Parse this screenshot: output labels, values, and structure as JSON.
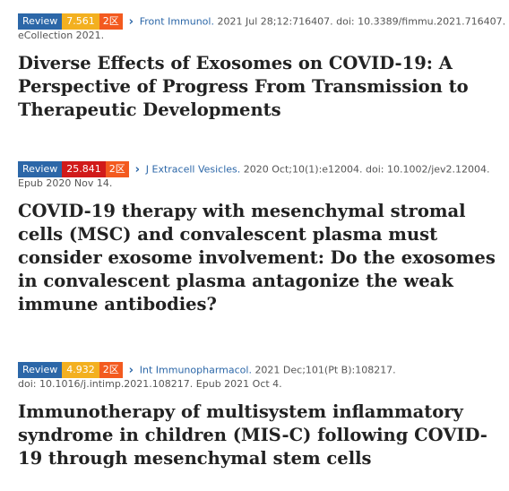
{
  "articles": [
    {
      "type_label": "Review",
      "impact_factor": "7.561",
      "zone": "2区",
      "journal": "Front Immunol.",
      "citation": "2021 Jul 28;12:716407. doi: 10.3389/fimmu.2021.716407.",
      "citation_cont": "eCollection 2021.",
      "title": "Diverse Effects of Exosomes on COVID-19: A Perspective of Progress From Transmission to Therapeutic Developments"
    },
    {
      "type_label": "Review",
      "impact_factor": "25.841",
      "zone": "2区",
      "journal": "J Extracell Vesicles.",
      "citation": "2020 Oct;10(1):e12004. doi: 10.1002/jev2.12004.",
      "citation_cont": "Epub 2020 Nov 14.",
      "title": "COVID-19 therapy with mesenchymal stromal cells (MSC) and convalescent plasma must consider exosome involvement: Do the exosomes in convalescent plasma antagonize the weak immune antibodies?"
    },
    {
      "type_label": "Review",
      "impact_factor": "4.932",
      "zone": "2区",
      "journal": "Int Immunopharmacol.",
      "citation": "2021 Dec;101(Pt B):108217.",
      "citation_cont": "doi: 10.1016/j.intimp.2021.108217. Epub 2021 Oct 4.",
      "title": "Immunotherapy of multisystem inflammatory syndrome in children (MIS-C) following COVID-19 through mesenchymal stem cells"
    }
  ],
  "colors": {
    "review_badge": "#2c67a8",
    "impact_factor_normal": "#f3b020",
    "impact_factor_high": "#d11a1a",
    "zone_badge": "#f35a1f",
    "link": "#2c67a8"
  },
  "icons": {
    "chevron": "chevron-right-icon"
  }
}
